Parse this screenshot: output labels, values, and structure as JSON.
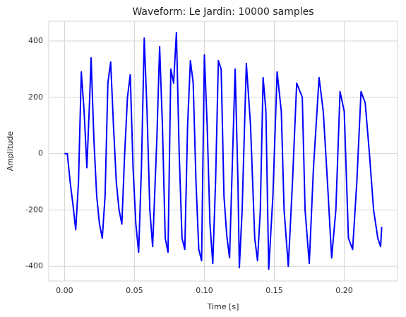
{
  "chart_data": {
    "type": "line",
    "title": "Waveform: Le Jardin: 10000 samples",
    "xlabel": "Time [s]",
    "ylabel": "Amplitude",
    "x": [
      0.0,
      0.002,
      0.004,
      0.006,
      0.008,
      0.01,
      0.012,
      0.014,
      0.016,
      0.018,
      0.019,
      0.021,
      0.023,
      0.025,
      0.027,
      0.029,
      0.031,
      0.033,
      0.035,
      0.037,
      0.039,
      0.041,
      0.043,
      0.045,
      0.047,
      0.049,
      0.051,
      0.053,
      0.055,
      0.057,
      0.059,
      0.061,
      0.063,
      0.066,
      0.068,
      0.07,
      0.072,
      0.074,
      0.076,
      0.078,
      0.08,
      0.082,
      0.084,
      0.086,
      0.088,
      0.09,
      0.092,
      0.094,
      0.096,
      0.098,
      0.1,
      0.102,
      0.104,
      0.106,
      0.108,
      0.11,
      0.112,
      0.114,
      0.116,
      0.118,
      0.122,
      0.124,
      0.125,
      0.127,
      0.13,
      0.133,
      0.136,
      0.138,
      0.14,
      0.142,
      0.144,
      0.146,
      0.149,
      0.152,
      0.155,
      0.157,
      0.16,
      0.163,
      0.166,
      0.17,
      0.172,
      0.175,
      0.178,
      0.182,
      0.185,
      0.188,
      0.191,
      0.194,
      0.197,
      0.2,
      0.203,
      0.206,
      0.209,
      0.212,
      0.215,
      0.218,
      0.221,
      0.224,
      0.226,
      0.2268
    ],
    "series": [
      {
        "name": "Waveform",
        "color": "#0000ff",
        "values": [
          0,
          0,
          -100,
          -180,
          -270,
          -100,
          290,
          150,
          -50,
          200,
          340,
          50,
          -150,
          -250,
          -300,
          -150,
          250,
          325,
          100,
          -100,
          -200,
          -250,
          0,
          200,
          280,
          -50,
          -250,
          -350,
          -50,
          410,
          150,
          -200,
          -330,
          50,
          380,
          100,
          -300,
          -350,
          300,
          250,
          430,
          0,
          -300,
          -340,
          100,
          330,
          250,
          -100,
          -340,
          -380,
          350,
          100,
          -250,
          -390,
          -100,
          330,
          300,
          -150,
          -290,
          -370,
          300,
          -100,
          -405,
          -200,
          320,
          100,
          -300,
          -380,
          -200,
          270,
          150,
          -410,
          -150,
          290,
          150,
          -200,
          -400,
          -100,
          250,
          200,
          -200,
          -390,
          -50,
          270,
          150,
          -100,
          -370,
          -200,
          220,
          150,
          -300,
          -340,
          -100,
          220,
          180,
          0,
          -200,
          -300,
          -330,
          -260
        ]
      }
    ],
    "xlim": [
      -0.0113,
      0.2381
    ],
    "ylim": [
      -452,
      470
    ],
    "xticks": [
      {
        "value": 0,
        "label": "0.00"
      },
      {
        "value": 0.05,
        "label": "0.05"
      },
      {
        "value": 0.1,
        "label": "0.10"
      },
      {
        "value": 0.15,
        "label": "0.15"
      },
      {
        "value": 0.2,
        "label": "0.20"
      }
    ],
    "yticks": [
      -400,
      -200,
      0,
      200,
      400
    ],
    "grid": true
  }
}
